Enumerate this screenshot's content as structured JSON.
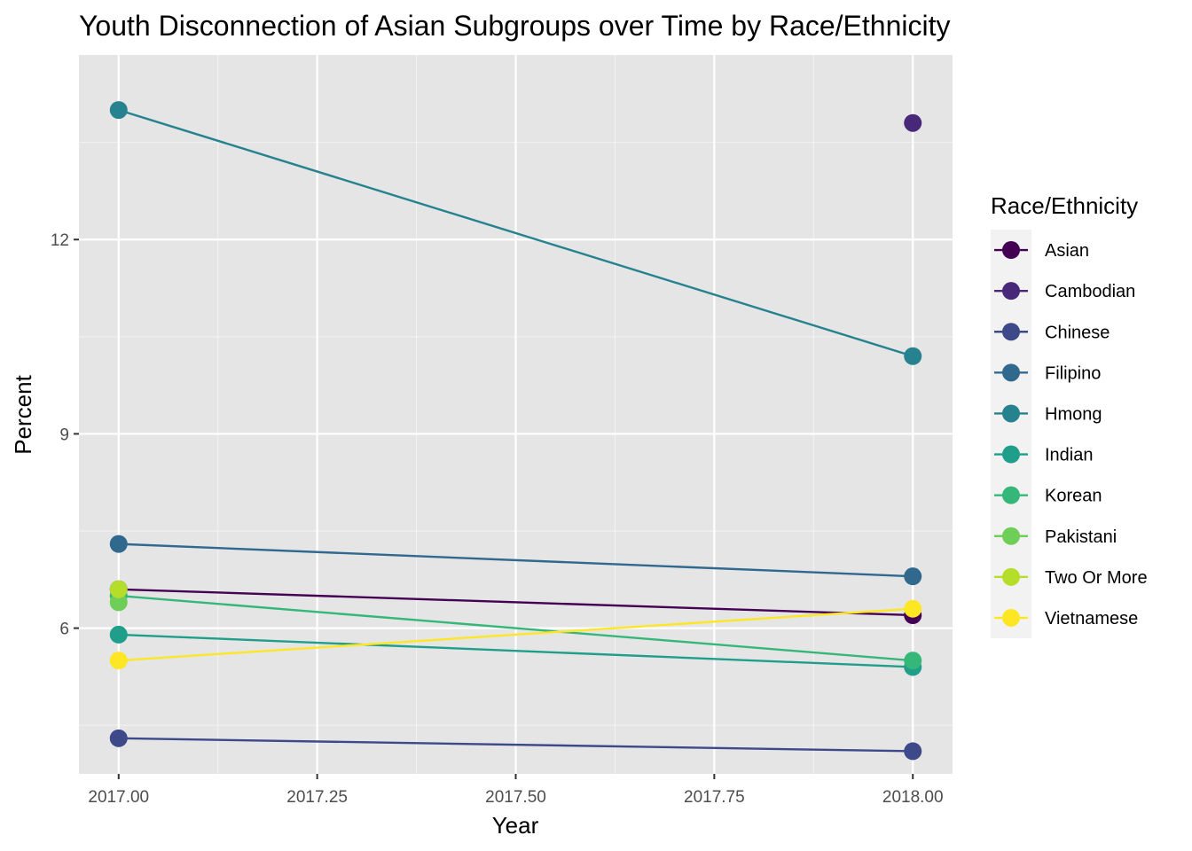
{
  "chart_data": {
    "type": "line",
    "title": "Youth Disconnection of Asian Subgroups over Time by Race/Ethnicity",
    "xlabel": "Year",
    "ylabel": "Percent",
    "x": [
      2017,
      2018
    ],
    "xlim": [
      2016.95,
      2018.05
    ],
    "ylim": [
      3.75,
      14.85
    ],
    "x_ticks": [
      2017.0,
      2017.25,
      2017.5,
      2017.75,
      2018.0
    ],
    "x_tick_labels": [
      "2017.00",
      "2017.25",
      "2017.50",
      "2017.75",
      "2018.00"
    ],
    "y_ticks": [
      6,
      9,
      12
    ],
    "y_tick_labels": [
      "6",
      "9",
      "12"
    ],
    "grid": true,
    "panel_background": "#e5e5e5",
    "legend": {
      "title": "Race/Ethnicity",
      "position": "right"
    },
    "series": [
      {
        "name": "Asian",
        "color": "#440154",
        "values": [
          6.6,
          6.2
        ]
      },
      {
        "name": "Cambodian",
        "color": "#482878",
        "values": [
          null,
          13.8
        ]
      },
      {
        "name": "Chinese",
        "color": "#3e4989",
        "values": [
          4.3,
          4.1
        ]
      },
      {
        "name": "Filipino",
        "color": "#31688e",
        "values": [
          7.3,
          6.8
        ]
      },
      {
        "name": "Hmong",
        "color": "#26828e",
        "values": [
          14.0,
          10.2
        ]
      },
      {
        "name": "Indian",
        "color": "#1f9e89",
        "values": [
          5.9,
          5.4
        ]
      },
      {
        "name": "Korean",
        "color": "#35b779",
        "values": [
          6.5,
          5.5
        ]
      },
      {
        "name": "Pakistani",
        "color": "#6ece58",
        "values": [
          6.4,
          null
        ]
      },
      {
        "name": "Two Or More",
        "color": "#b5de2b",
        "values": [
          6.6,
          null
        ]
      },
      {
        "name": "Vietnamese",
        "color": "#fde725",
        "values": [
          5.5,
          6.3
        ]
      }
    ]
  }
}
